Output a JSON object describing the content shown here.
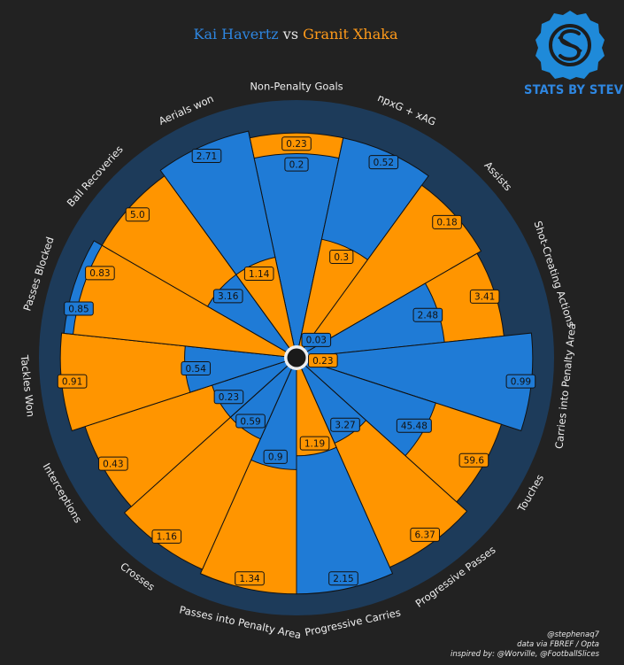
{
  "title": {
    "player_a": "Kai Havertz",
    "vs": "vs",
    "player_b": "Granit Xhaka"
  },
  "logo": {
    "text": "STATS BY STEVE",
    "icon": "s-logo-icon"
  },
  "footer": {
    "author": "@stephenaq7",
    "source": "data via FBREF / Opta",
    "inspired": "inspired by: @Worville, @FootballSlices"
  },
  "colors": {
    "background": "#222222",
    "ring": "#1d3b5a",
    "player_a": "#1f7bd6",
    "player_b": "#ff9500",
    "edge": "#111111"
  },
  "chart_data": {
    "type": "pizza",
    "title": "Kai Havertz vs Granit Xhaka",
    "series": [
      {
        "name": "Kai Havertz",
        "color": "#1f7bd6"
      },
      {
        "name": "Granit Xhaka",
        "color": "#ff9500"
      }
    ],
    "params": [
      {
        "name": "Non-Penalty Goals",
        "a": 0.2,
        "a_label": "0.2",
        "b": 0.23,
        "b_label": "0.23",
        "a_pct": 84,
        "b_pct": 93
      },
      {
        "name": "npxG + xAG",
        "a": 0.52,
        "a_label": "0.52",
        "b": 0.3,
        "b_label": "0.3",
        "a_pct": 93,
        "b_pct": 48
      },
      {
        "name": "Assists",
        "a": 0.03,
        "a_label": "0.03",
        "b": 0.18,
        "b_label": "0.18",
        "a_pct": 8,
        "b_pct": 88
      },
      {
        "name": "Shot-Creating Actions",
        "a": 2.48,
        "a_label": "2.48",
        "b": 3.41,
        "b_label": "3.41",
        "a_pct": 60,
        "b_pct": 86
      },
      {
        "name": "Carries into Penalty Area",
        "a": 0.99,
        "a_label": "0.99",
        "b": 0.23,
        "b_label": "0.23",
        "a_pct": 98,
        "b_pct": 3
      },
      {
        "name": "Touches",
        "a": 45.48,
        "a_label": "45.48",
        "b": 59.6,
        "b_label": "59.6",
        "a_pct": 59,
        "b_pct": 89
      },
      {
        "name": "Progressive Passes",
        "a": 3.27,
        "a_label": "3.27",
        "b": 6.37,
        "b_label": "6.37",
        "a_pct": 36,
        "b_pct": 95
      },
      {
        "name": "Progressive Carries",
        "a": 2.15,
        "a_label": "2.15",
        "b": 1.19,
        "b_label": "1.19",
        "a_pct": 98,
        "b_pct": 38
      },
      {
        "name": "Passes into Penalty Area",
        "a": 0.9,
        "a_label": "0.9",
        "b": 1.34,
        "b_label": "1.34",
        "a_pct": 44,
        "b_pct": 98
      },
      {
        "name": "Crosses",
        "a": 0.59,
        "a_label": "0.59",
        "b": 1.16,
        "b_label": "1.16",
        "a_pct": 34,
        "b_pct": 96
      },
      {
        "name": "Interceptions",
        "a": 0.23,
        "a_label": "0.23",
        "b": 0.43,
        "b_label": "0.43",
        "a_pct": 34,
        "b_pct": 92
      },
      {
        "name": "Tackles Won",
        "a": 0.54,
        "a_label": "0.54",
        "b": 0.91,
        "b_label": "0.91",
        "a_pct": 44,
        "b_pct": 98
      },
      {
        "name": "Passes Blocked",
        "a": 0.85,
        "a_label": "0.85",
        "b": 0.83,
        "b_label": "0.83",
        "a_pct": 97,
        "b_pct": 93
      },
      {
        "name": "Ball Recoveries",
        "a": 3.16,
        "a_label": "3.16",
        "b": 5.0,
        "b_label": "5.0",
        "a_pct": 40,
        "b_pct": 93
      },
      {
        "name": "Aerials won",
        "a": 2.71,
        "a_label": "2.71",
        "b": 1.14,
        "b_label": "1.14",
        "a_pct": 96,
        "b_pct": 40
      }
    ]
  }
}
